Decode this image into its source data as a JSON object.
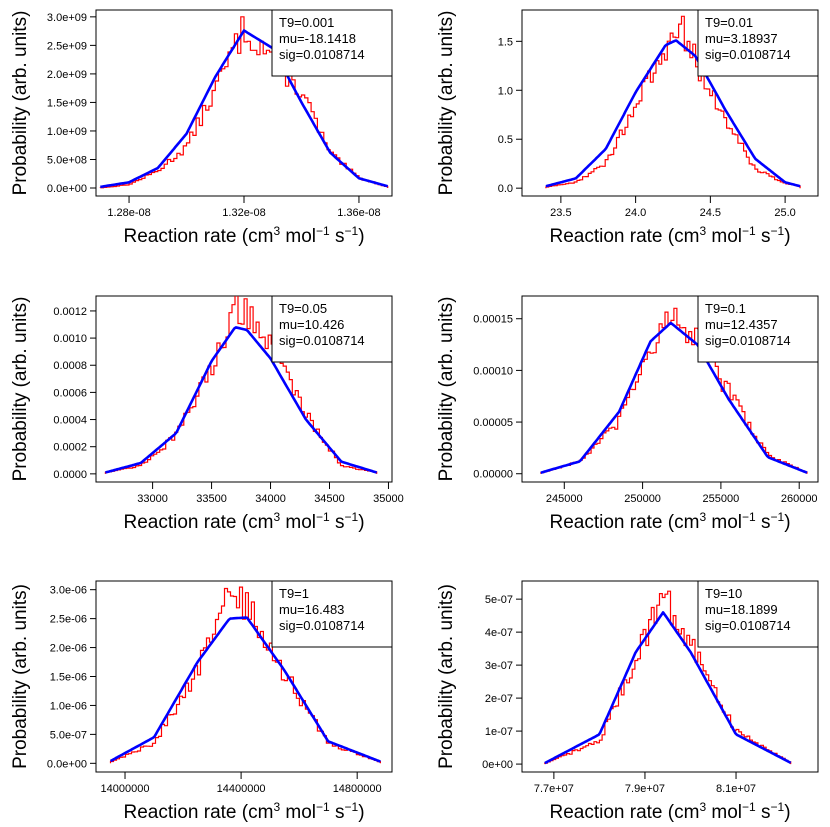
{
  "colors": {
    "histogram": "#ff0000",
    "fit": "#0000ff",
    "axis": "#000000",
    "background": "#ffffff"
  },
  "chart_data": [
    {
      "type": "line",
      "xlabel": "Reaction rate (cm",
      "xlabel_sup1": "3",
      "xlabel_mid": " mol",
      "xlabel_sup2": "−1",
      "xlabel_mid2": " s",
      "xlabel_sup3": "−1",
      "xlabel_end": ")",
      "ylabel": "Probability (arb. units)",
      "legend": [
        "T9=0.001",
        "mu=-18.1418",
        "sig=0.0108714"
      ],
      "xlim": [
        1.2685e-08,
        1.3715e-08
      ],
      "ylim": [
        -140000000.0,
        3120000000.0
      ],
      "xticks": [
        1.28e-08,
        1.32e-08,
        1.36e-08
      ],
      "xtick_labels": [
        "1.28e-08",
        "1.32e-08",
        "1.36e-08"
      ],
      "yticks": [
        0,
        500000000.0,
        1000000000.0,
        1500000000.0,
        2000000000.0,
        2500000000.0,
        3000000000.0
      ],
      "ytick_labels": [
        "0.0e+00",
        "5.0e+08",
        "1.0e+09",
        "1.5e+09",
        "2.0e+09",
        "2.5e+09",
        "3.0e+09"
      ],
      "series": [
        {
          "name": "",
          "kind": "histogram",
          "x": [
            1.27e-08,
            1.28e-08,
            1.29e-08,
            1.3e-08,
            1.31e-08,
            1.32e-08,
            1.33e-08,
            1.34e-08,
            1.35e-08,
            1.36e-08,
            1.37e-08
          ],
          "y": [
            0,
            60000000.0,
            300000000.0,
            720000000.0,
            1720000000.0,
            2800000000.0,
            2300000000.0,
            1700000000.0,
            600000000.0,
            180000000.0,
            20000000.0
          ]
        },
        {
          "name": "",
          "kind": "fit",
          "x": [
            1.27e-08,
            1.28e-08,
            1.29e-08,
            1.3e-08,
            1.31e-08,
            1.32e-08,
            1.33e-08,
            1.34e-08,
            1.35e-08,
            1.36e-08,
            1.37e-08
          ],
          "y": [
            20000000.0,
            100000000.0,
            350000000.0,
            950000000.0,
            1950000000.0,
            2760000000.0,
            2450000000.0,
            1500000000.0,
            620000000.0,
            170000000.0,
            30000000.0
          ]
        }
      ]
    },
    {
      "type": "line",
      "xlabel": "Reaction rate (cm",
      "xlabel_sup1": "3",
      "xlabel_mid": " mol",
      "xlabel_sup2": "−1",
      "xlabel_mid2": " s",
      "xlabel_sup3": "−1",
      "xlabel_end": ")",
      "ylabel": "Probability (arb. units)",
      "legend": [
        "T9=0.01",
        "mu=3.18937",
        "sig=0.0108714"
      ],
      "xlim": [
        23.24,
        25.22
      ],
      "ylim": [
        -0.08,
        1.82
      ],
      "xticks": [
        23.5,
        24.0,
        24.5,
        25.0
      ],
      "xtick_labels": [
        "23.5",
        "24.0",
        "24.5",
        "25.0"
      ],
      "yticks": [
        0,
        0.5,
        1.0,
        1.5
      ],
      "ytick_labels": [
        "0.0",
        "0.5",
        "1.0",
        "1.5"
      ],
      "series": [
        {
          "name": "",
          "kind": "histogram",
          "x": [
            23.4,
            23.6,
            23.8,
            24.0,
            24.2,
            24.27,
            24.4,
            24.6,
            24.8,
            25.0,
            25.1
          ],
          "y": [
            0.01,
            0.06,
            0.25,
            0.85,
            1.38,
            1.75,
            1.3,
            0.7,
            0.2,
            0.05,
            0.02
          ]
        },
        {
          "name": "",
          "kind": "fit",
          "x": [
            23.4,
            23.6,
            23.8,
            24.0,
            24.2,
            24.27,
            24.4,
            24.6,
            24.8,
            25.0,
            25.1
          ],
          "y": [
            0.02,
            0.1,
            0.4,
            0.98,
            1.46,
            1.51,
            1.35,
            0.8,
            0.3,
            0.06,
            0.02
          ]
        }
      ]
    },
    {
      "type": "line",
      "xlabel": "Reaction rate (cm",
      "xlabel_sup1": "3",
      "xlabel_mid": " mol",
      "xlabel_sup2": "−1",
      "xlabel_mid2": " s",
      "xlabel_sup3": "−1",
      "xlabel_end": ")",
      "ylabel": "Probability (arb. units)",
      "legend": [
        "T9=0.05",
        "mu=10.426",
        "sig=0.0108714"
      ],
      "xlim": [
        32520,
        35030
      ],
      "ylim": [
        -6e-05,
        0.00131
      ],
      "xticks": [
        33000,
        33500,
        34000,
        34500,
        35000
      ],
      "xtick_labels": [
        "33000",
        "33500",
        "34000",
        "34500",
        "35000"
      ],
      "yticks": [
        0,
        0.0002,
        0.0004,
        0.0006,
        0.0008,
        0.001,
        0.0012
      ],
      "ytick_labels": [
        "0.0000",
        "0.0002",
        "0.0004",
        "0.0006",
        "0.0008",
        "0.0010",
        "0.0012"
      ],
      "series": [
        {
          "name": "",
          "kind": "histogram",
          "x": [
            32600,
            32900,
            33200,
            33500,
            33700,
            33800,
            34000,
            34300,
            34600,
            34900
          ],
          "y": [
            1e-05,
            6e-05,
            0.00028,
            0.00078,
            0.00126,
            0.00121,
            0.00095,
            0.00045,
            6e-05,
            1e-05
          ]
        },
        {
          "name": "",
          "kind": "fit",
          "x": [
            32600,
            32900,
            33200,
            33500,
            33700,
            33800,
            34000,
            34300,
            34600,
            34900
          ],
          "y": [
            1e-05,
            8e-05,
            0.0003,
            0.00083,
            0.00108,
            0.00106,
            0.00085,
            0.0004,
            9e-05,
            1e-05
          ]
        }
      ]
    },
    {
      "type": "line",
      "xlabel": "Reaction rate (cm",
      "xlabel_sup1": "3",
      "xlabel_mid": " mol",
      "xlabel_sup2": "−1",
      "xlabel_mid2": " s",
      "xlabel_sup3": "−1",
      "xlabel_end": ")",
      "ylabel": "Probability (arb. units)",
      "legend": [
        "T9=0.1",
        "mu=12.4357",
        "sig=0.0108714"
      ],
      "xlim": [
        242300,
        261200
      ],
      "ylim": [
        -8e-06,
        0.000172
      ],
      "xticks": [
        245000,
        250000,
        255000,
        260000
      ],
      "xtick_labels": [
        "245000",
        "250000",
        "255000",
        "260000"
      ],
      "yticks": [
        0,
        5e-05,
        0.0001,
        0.00015
      ],
      "ytick_labels": [
        "0.00000",
        "0.00005",
        "0.00010",
        "0.00015"
      ],
      "series": [
        {
          "name": "",
          "kind": "histogram",
          "x": [
            243500,
            246000,
            248500,
            250500,
            251800,
            253500,
            255500,
            258000,
            260500
          ],
          "y": [
            5e-07,
            1.2e-05,
            5e-05,
            0.000125,
            0.000148,
            0.00013,
            8e-05,
            1.8e-05,
            1e-06
          ]
        },
        {
          "name": "",
          "kind": "fit",
          "x": [
            243500,
            246000,
            248500,
            250500,
            251800,
            253500,
            255500,
            258000,
            260500
          ],
          "y": [
            1e-06,
            1.2e-05,
            6e-05,
            0.000128,
            0.000146,
            0.000125,
            7.2e-05,
            1.6e-05,
            1e-06
          ]
        }
      ]
    },
    {
      "type": "line",
      "xlabel": "Reaction rate (cm",
      "xlabel_sup1": "3",
      "xlabel_mid": " mol",
      "xlabel_sup2": "−1",
      "xlabel_mid2": " s",
      "xlabel_sup3": "−1",
      "xlabel_end": ")",
      "ylabel": "Probability (arb. units)",
      "legend": [
        "T9=1",
        "mu=16.483",
        "sig=0.0108714"
      ],
      "xlim": [
        13900000,
        14920000
      ],
      "ylim": [
        -1.5e-07,
        3.15e-06
      ],
      "xticks": [
        14000000,
        14400000,
        14800000
      ],
      "xtick_labels": [
        "14000000",
        "14400000",
        "14800000"
      ],
      "yticks": [
        0,
        5e-07,
        1e-06,
        1.5e-06,
        2e-06,
        2.5e-06,
        3e-06
      ],
      "ytick_labels": [
        "0.0e+00",
        "5.0e-07",
        "1.0e-06",
        "1.5e-06",
        "2.0e-06",
        "2.5e-06",
        "3.0e-06"
      ],
      "series": [
        {
          "name": "",
          "kind": "histogram",
          "x": [
            13950000,
            14100000,
            14250000,
            14360000,
            14420000,
            14550000,
            14700000,
            14880000
          ],
          "y": [
            2e-08,
            3.5e-07,
            1.6e-06,
            2.95e-06,
            2.7e-06,
            1.55e-06,
            3.5e-07,
            2e-08
          ]
        },
        {
          "name": "",
          "kind": "fit",
          "x": [
            13950000,
            14100000,
            14250000,
            14360000,
            14420000,
            14550000,
            14700000,
            14880000
          ],
          "y": [
            4e-08,
            4.5e-07,
            1.75e-06,
            2.5e-06,
            2.52e-06,
            1.6e-06,
            3.8e-07,
            3e-08
          ]
        }
      ]
    },
    {
      "type": "line",
      "xlabel": "Reaction rate (cm",
      "xlabel_sup1": "3",
      "xlabel_mid": " mol",
      "xlabel_sup2": "−1",
      "xlabel_mid2": " s",
      "xlabel_sup3": "−1",
      "xlabel_end": ")",
      "ylabel": "Probability (arb. units)",
      "legend": [
        "T9=10",
        "mu=18.1899",
        "sig=0.0108714"
      ],
      "xlim": [
        76300000.0,
        82800000.0
      ],
      "ylim": [
        -2.4e-08,
        5.55e-07
      ],
      "xticks": [
        77000000.0,
        79000000.0,
        81000000.0
      ],
      "xtick_labels": [
        "7.7e+07",
        "7.9e+07",
        "8.1e+07"
      ],
      "yticks": [
        0,
        1e-07,
        2e-07,
        3e-07,
        4e-07,
        5e-07
      ],
      "ytick_labels": [
        "0e+00",
        "1e-07",
        "2e-07",
        "3e-07",
        "4e-07",
        "5e-07"
      ],
      "series": [
        {
          "name": "",
          "kind": "histogram",
          "x": [
            76800000.0,
            78000000.0,
            78800000.0,
            79400000.0,
            80000000.0,
            81000000.0,
            82200000.0
          ],
          "y": [
            1e-09,
            7e-08,
            3.2e-07,
            5.2e-07,
            3.6e-07,
            1e-07,
            5e-09
          ]
        },
        {
          "name": "",
          "kind": "fit",
          "x": [
            76800000.0,
            78000000.0,
            78800000.0,
            79400000.0,
            80000000.0,
            81000000.0,
            82200000.0
          ],
          "y": [
            3e-09,
            9e-08,
            3.4e-07,
            4.6e-07,
            3.4e-07,
            9e-08,
            4e-09
          ]
        }
      ]
    }
  ]
}
